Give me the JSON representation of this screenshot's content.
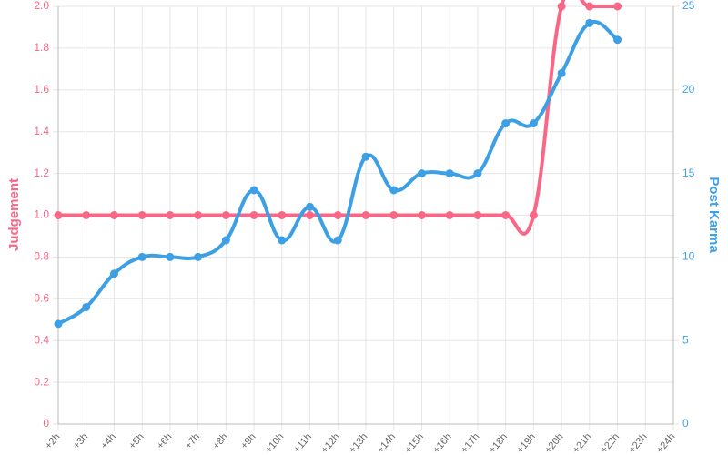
{
  "chart_data": {
    "type": "line",
    "categories": [
      "+2h",
      "+3h",
      "+4h",
      "+5h",
      "+6h",
      "+7h",
      "+8h",
      "+9h",
      "+10h",
      "+11h",
      "+12h",
      "+13h",
      "+14h",
      "+15h",
      "+16h",
      "+17h",
      "+18h",
      "+19h",
      "+20h",
      "+21h",
      "+22h",
      "+23h",
      "+24h"
    ],
    "y_label": "Judgement",
    "y2_label": "Post Karma",
    "ylim": [
      0,
      2
    ],
    "yticks": [
      0,
      0.2,
      0.4,
      0.6,
      0.8,
      {
        "value": 1,
        "label": "1.0"
      },
      1.2,
      1.4,
      1.6,
      1.8,
      {
        "value": 2,
        "label": "2.0"
      }
    ],
    "y2lim": [
      0,
      25
    ],
    "y2ticks": [
      0,
      5,
      10,
      15,
      20,
      25
    ],
    "grid": true,
    "smooth": true,
    "series": [
      {
        "name": "Judgement",
        "color": "#f86785",
        "values": [
          1,
          1,
          1,
          1,
          1,
          1,
          1,
          1,
          1,
          1,
          1,
          1,
          1,
          1,
          1,
          1,
          1,
          1,
          2,
          2,
          2,
          null,
          null
        ]
      },
      {
        "name": "Post Karma",
        "color": "#3ea0e4",
        "axis": "y2",
        "values": [
          6,
          7,
          9,
          10,
          10,
          10,
          11,
          14,
          11,
          13,
          11,
          16,
          14,
          15,
          15,
          15,
          18,
          18,
          21,
          24,
          23,
          null,
          null
        ]
      }
    ]
  }
}
